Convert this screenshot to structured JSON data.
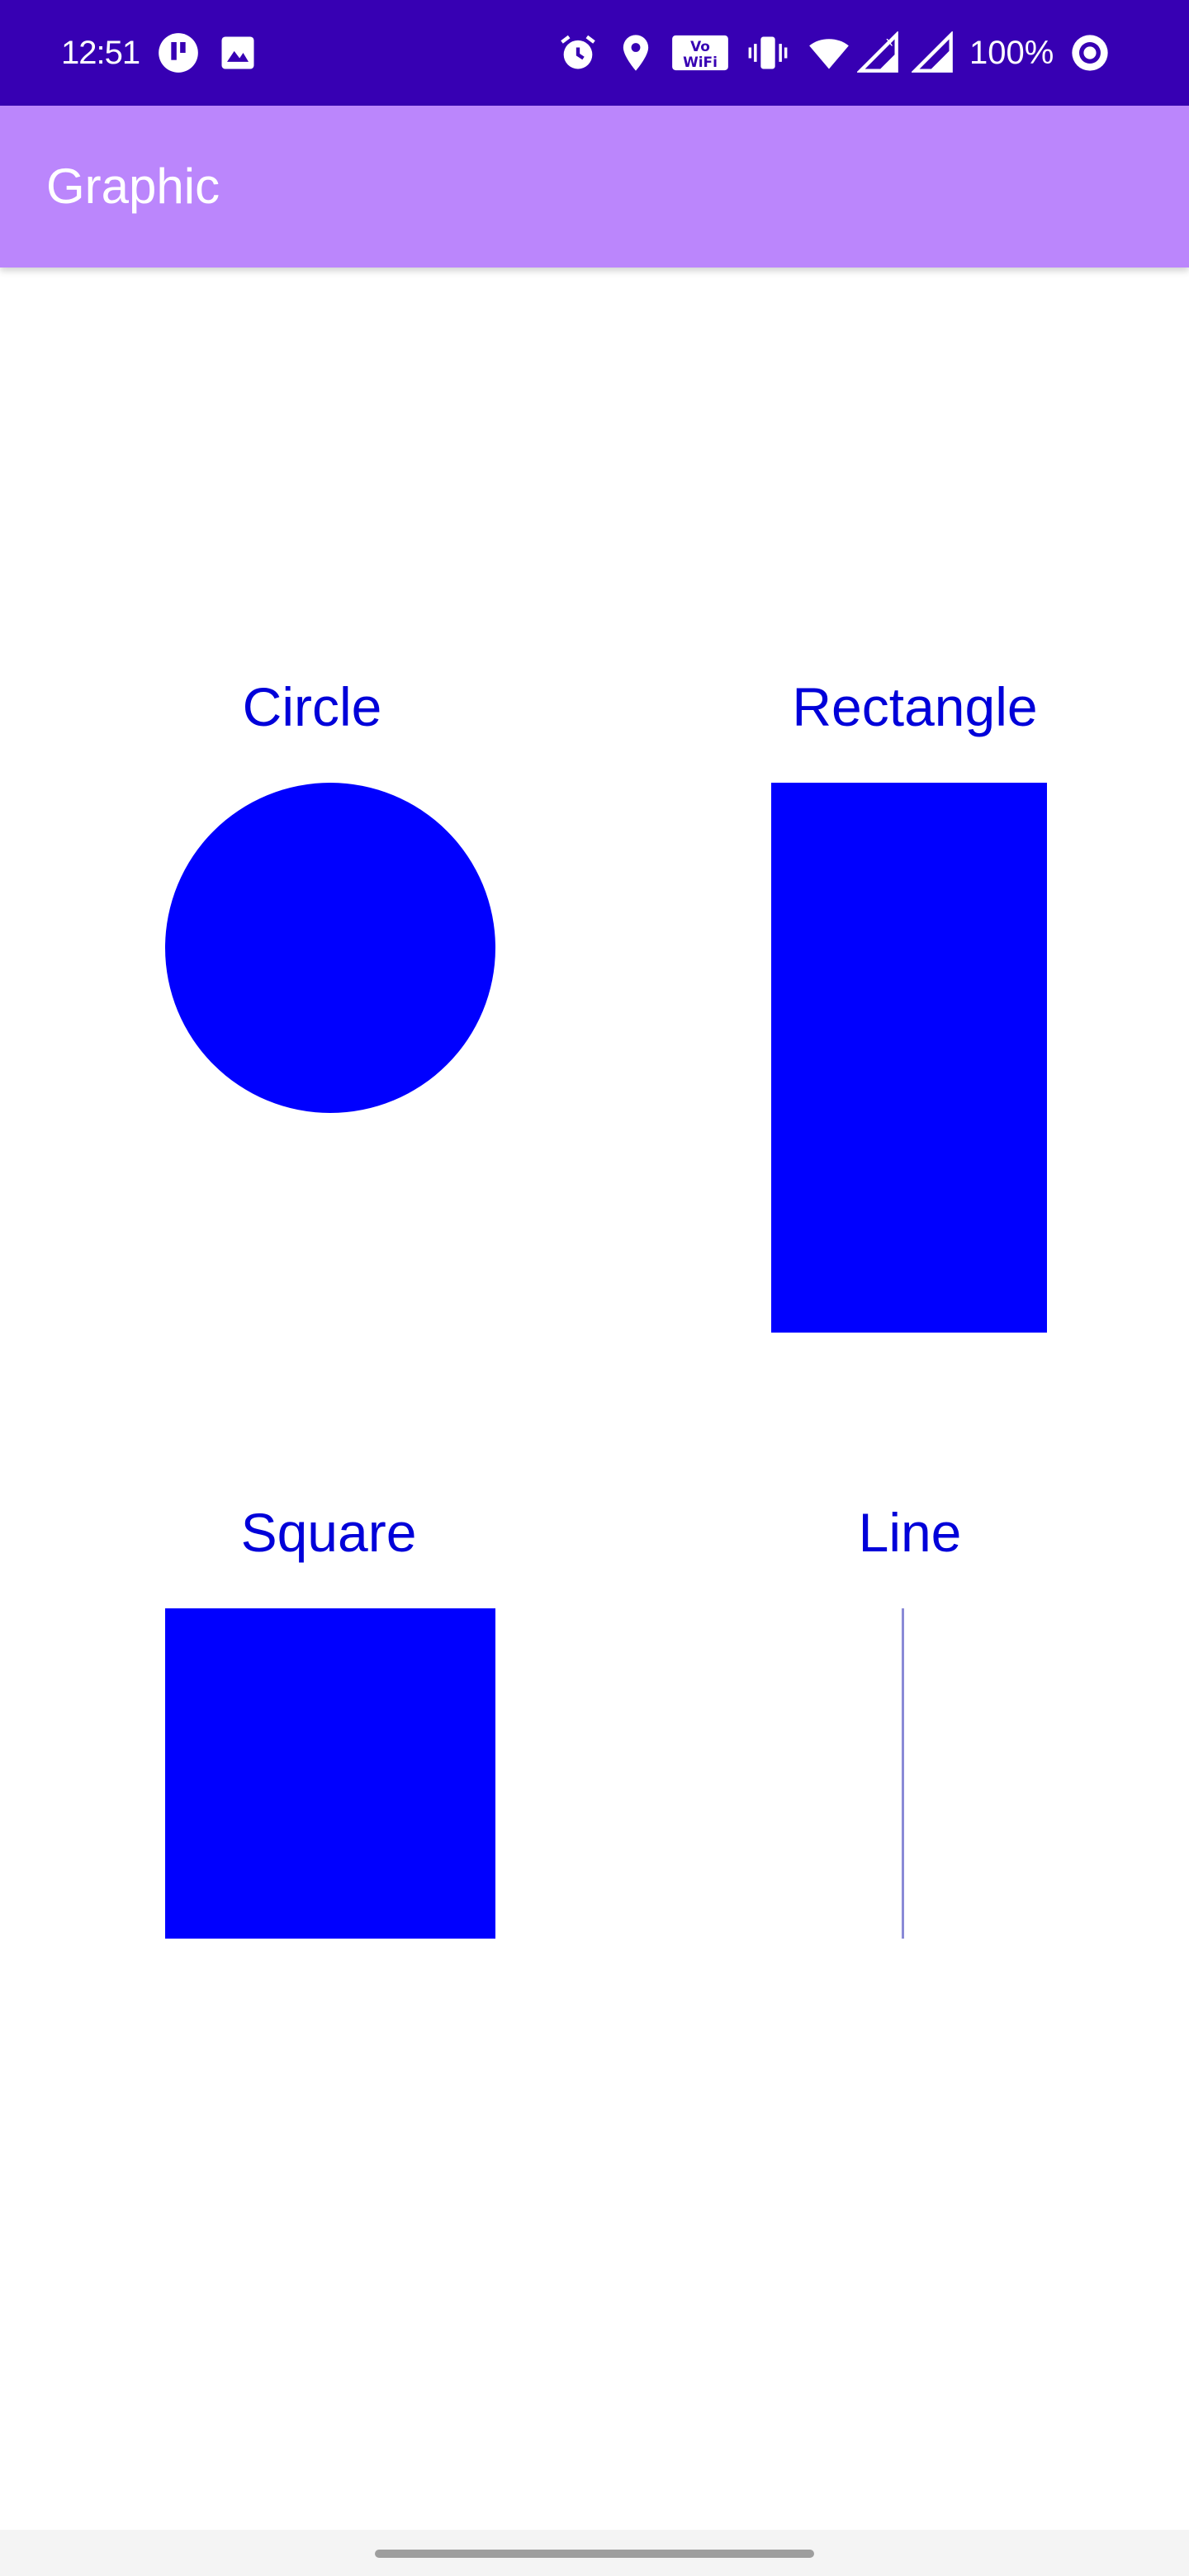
{
  "status_bar": {
    "time": "12:51",
    "battery": "100%",
    "icons": [
      "notification-app-icon",
      "image-icon",
      "alarm-icon",
      "location-icon",
      "vowifi-icon",
      "vibrate-icon",
      "wifi-icon",
      "signal-no-data-icon",
      "signal-icon",
      "sync-circle-icon"
    ]
  },
  "app_bar": {
    "title": "Graphic"
  },
  "shapes": {
    "circle": {
      "label": "Circle"
    },
    "rectangle": {
      "label": "Rectangle"
    },
    "square": {
      "label": "Square"
    },
    "line": {
      "label": "Line"
    }
  },
  "colors": {
    "status_bar": "#3700b3",
    "app_bar": "#bb86fc",
    "shape_fill": "#0000ff",
    "label_text": "#0000d9"
  }
}
